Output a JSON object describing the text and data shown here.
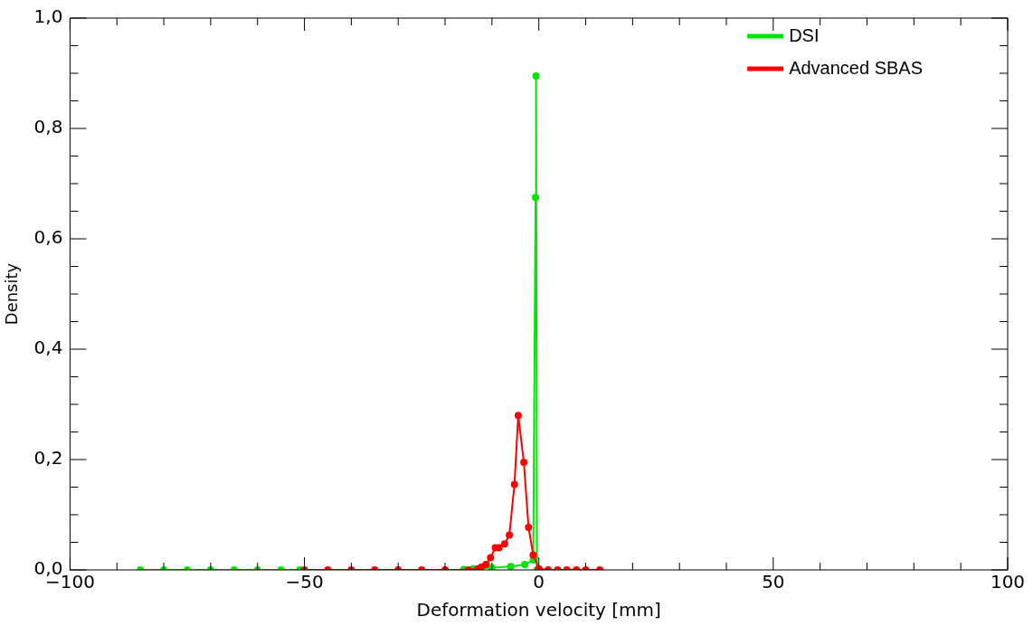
{
  "chart_data": {
    "type": "line",
    "xlabel": "Deformation velocity [mm]",
    "ylabel": "Density",
    "xlim": [
      -100,
      100
    ],
    "ylim": [
      0,
      1
    ],
    "xticks": [
      {
        "value": -100,
        "label": "−100"
      },
      {
        "value": -90,
        "label": null
      },
      {
        "value": -80,
        "label": null
      },
      {
        "value": -70,
        "label": null
      },
      {
        "value": -60,
        "label": null
      },
      {
        "value": -50,
        "label": "−50"
      },
      {
        "value": -40,
        "label": null
      },
      {
        "value": -30,
        "label": null
      },
      {
        "value": -20,
        "label": null
      },
      {
        "value": -10,
        "label": null
      },
      {
        "value": 0,
        "label": "0"
      },
      {
        "value": 10,
        "label": null
      },
      {
        "value": 20,
        "label": null
      },
      {
        "value": 30,
        "label": null
      },
      {
        "value": 40,
        "label": null
      },
      {
        "value": 50,
        "label": "50"
      },
      {
        "value": 60,
        "label": null
      },
      {
        "value": 70,
        "label": null
      },
      {
        "value": 80,
        "label": null
      },
      {
        "value": 90,
        "label": null
      },
      {
        "value": 100,
        "label": "100"
      }
    ],
    "yticks": [
      {
        "value": 0,
        "label": "0,0"
      },
      {
        "value": 0.05,
        "label": null
      },
      {
        "value": 0.1,
        "label": null
      },
      {
        "value": 0.15,
        "label": null
      },
      {
        "value": 0.2,
        "label": "0,2"
      },
      {
        "value": 0.25,
        "label": null
      },
      {
        "value": 0.3,
        "label": null
      },
      {
        "value": 0.35,
        "label": null
      },
      {
        "value": 0.4,
        "label": "0,4"
      },
      {
        "value": 0.45,
        "label": null
      },
      {
        "value": 0.5,
        "label": null
      },
      {
        "value": 0.55,
        "label": null
      },
      {
        "value": 0.6,
        "label": "0,6"
      },
      {
        "value": 0.65,
        "label": null
      },
      {
        "value": 0.7,
        "label": null
      },
      {
        "value": 0.75,
        "label": null
      },
      {
        "value": 0.8,
        "label": "0,8"
      },
      {
        "value": 0.85,
        "label": null
      },
      {
        "value": 0.9,
        "label": null
      },
      {
        "value": 0.95,
        "label": null
      },
      {
        "value": 1,
        "label": "1,0"
      }
    ],
    "grid": false,
    "legend": "top right",
    "marker": "circle",
    "line_style": "solid",
    "series": [
      {
        "name": "DSI",
        "color": "#00e600",
        "x": [
          -85,
          -80,
          -75,
          -70,
          -65,
          -60,
          -55,
          -51,
          -45,
          -16,
          -14,
          -10,
          -6,
          -3,
          -1.2,
          -0.7,
          -0.6,
          -0.4
        ],
        "values": [
          0,
          0,
          0,
          0,
          0,
          0,
          0,
          0,
          null,
          0.001,
          0.002,
          0.004,
          0.006,
          0.01,
          0.018,
          0.675,
          0.895,
          0
        ]
      },
      {
        "name": "Advanced SBAS",
        "color": "#ff0000",
        "x": [
          -50,
          -45,
          -40,
          -35,
          -30,
          -25,
          -20,
          -15,
          -13,
          -12.3,
          -11.3,
          -10.3,
          -9.3,
          -8.5,
          -7.3,
          -6.3,
          -5.2,
          -4.4,
          -3.2,
          -2.2,
          -1.2,
          0,
          2,
          4,
          6,
          8,
          10,
          13
        ],
        "values": [
          0,
          0,
          0,
          0,
          0,
          0,
          0,
          0,
          0.002,
          0.005,
          0.01,
          0.022,
          0.04,
          0.04,
          0.047,
          0.063,
          0.155,
          0.28,
          0.195,
          0.077,
          0.027,
          0.002,
          0,
          0,
          0,
          0,
          0,
          0
        ]
      }
    ]
  }
}
